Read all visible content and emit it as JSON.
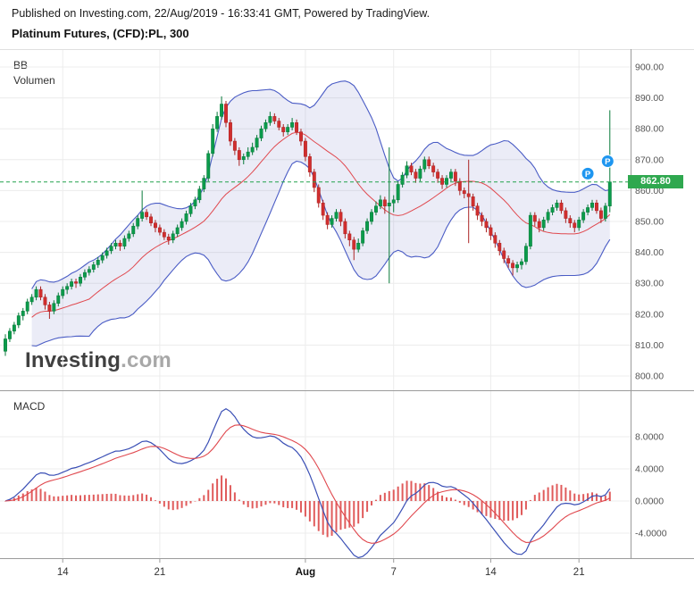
{
  "header": {
    "published_line": "Published on Investing.com, 22/Aug/2019 - 16:33:41 GMT, Powered by TradingView.",
    "instrument_title": "Platinum Futures, (CFD):PL, 300"
  },
  "watermark": {
    "brand": "Investing",
    "suffix": ".com"
  },
  "main_panel": {
    "indicator_labels": [
      "BB",
      "Volumen"
    ],
    "current_price_label": "862.80"
  },
  "macd_panel": {
    "label": "MACD"
  },
  "chart_data": {
    "type": "candlestick",
    "title": "Platinum Futures, (CFD):PL, 300",
    "interval_minutes": 300,
    "current_price": 862.8,
    "price_axis": {
      "min": 800,
      "max": 900,
      "tick_step": 10,
      "tick_labels": [
        "900.00",
        "890.00",
        "880.00",
        "870.00",
        "860.00",
        "850.00",
        "840.00",
        "830.00",
        "820.00",
        "810.00",
        "800.00"
      ]
    },
    "macd_axis": {
      "tick_labels": [
        "8.0000",
        "4.0000",
        "0.0000",
        "-4.0000"
      ],
      "tick_values": [
        8,
        4,
        0,
        -4
      ]
    },
    "x_axis_ticks": [
      {
        "label": "14",
        "bar": 13
      },
      {
        "label": "21",
        "bar": 35
      },
      {
        "label": "Aug",
        "bar": 68,
        "bold": true
      },
      {
        "label": "7",
        "bar": 88
      },
      {
        "label": "14",
        "bar": 110
      },
      {
        "label": "21",
        "bar": 130
      }
    ],
    "markers": [
      {
        "label": "P",
        "bar": 132,
        "price": 865.5
      },
      {
        "label": "P",
        "bar": 136.5,
        "price": 869.5
      }
    ],
    "indicators": {
      "bollinger": {
        "period": 20,
        "stddev": 2
      },
      "macd": {
        "fast": 12,
        "slow": 26,
        "signal": 9
      }
    },
    "colors": {
      "up": "#0b9b4b",
      "up_border": "#087a3a",
      "down": "#d12e2e",
      "down_border": "#aa2424",
      "bb_band": "#4a5cc5",
      "bb_fill": "rgba(98,110,190,0.13)",
      "bb_mid": "#e0484e",
      "macd_line": "#3a4fb5",
      "macd_signal": "#e0484e",
      "macd_hist": "#e05b5b",
      "price_line": "#22a24c",
      "price_label_bg": "#2fa84f",
      "marker": "#1e96f0",
      "grid": "#ececec",
      "axis_border": "#9b9b9b",
      "axis_text": "#555555"
    },
    "candles": [
      [
        808,
        813.5,
        806.5,
        812
      ],
      [
        812,
        815.5,
        811,
        814.5
      ],
      [
        814.5,
        817.5,
        813.5,
        816.5
      ],
      [
        816.5,
        820.5,
        815.5,
        819.5
      ],
      [
        819.5,
        822,
        818,
        821
      ],
      [
        821,
        825,
        820,
        824
      ],
      [
        824,
        826.5,
        823,
        825.5
      ],
      [
        825.5,
        829,
        824.5,
        828
      ],
      [
        828,
        829,
        824.5,
        825.5
      ],
      [
        825.5,
        826.5,
        821.5,
        823
      ],
      [
        823,
        824,
        818.5,
        821
      ],
      [
        821,
        824.5,
        820,
        823.5
      ],
      [
        823.5,
        827,
        822.5,
        826
      ],
      [
        826,
        829,
        825,
        828
      ],
      [
        828,
        830,
        826.5,
        829
      ],
      [
        829,
        831.5,
        828,
        830.5
      ],
      [
        830.5,
        831.5,
        828.5,
        830
      ],
      [
        830,
        833,
        829,
        832
      ],
      [
        832,
        834.5,
        831,
        833.5
      ],
      [
        833.5,
        835.5,
        832.5,
        834.5
      ],
      [
        834.5,
        837,
        833.5,
        836
      ],
      [
        836,
        838.5,
        835,
        837.5
      ],
      [
        837.5,
        840,
        836.5,
        839
      ],
      [
        839,
        841.5,
        838,
        840.5
      ],
      [
        840.5,
        843,
        839.5,
        842
      ],
      [
        842,
        844,
        841,
        843
      ],
      [
        843,
        844,
        840.5,
        842
      ],
      [
        842,
        845.5,
        841,
        844.5
      ],
      [
        844.5,
        847,
        843.5,
        846
      ],
      [
        846,
        849.5,
        845,
        848.5
      ],
      [
        848.5,
        852,
        847.5,
        851
      ],
      [
        851,
        860,
        850,
        853
      ],
      [
        853,
        854,
        850.5,
        851.5
      ],
      [
        851.5,
        852.5,
        848.5,
        849.5
      ],
      [
        849.5,
        850.5,
        846.5,
        848
      ],
      [
        848,
        849,
        845.5,
        846.5
      ],
      [
        846.5,
        847.5,
        844,
        845
      ],
      [
        845,
        846,
        842.5,
        844
      ],
      [
        844,
        847,
        843,
        846
      ],
      [
        846,
        849,
        845,
        848
      ],
      [
        848,
        851,
        847,
        850
      ],
      [
        850,
        853.5,
        849,
        852.5
      ],
      [
        852.5,
        856,
        851.5,
        855
      ],
      [
        855,
        858,
        854,
        857
      ],
      [
        857,
        861.5,
        856,
        860.5
      ],
      [
        860.5,
        865,
        859.5,
        864
      ],
      [
        864,
        873,
        863,
        872
      ],
      [
        872,
        881.5,
        871,
        880
      ],
      [
        880,
        885.5,
        879,
        884
      ],
      [
        884,
        890.5,
        883,
        888
      ],
      [
        888,
        889,
        880.5,
        882
      ],
      [
        882,
        883,
        874.5,
        876
      ],
      [
        876,
        877,
        871.5,
        873
      ],
      [
        873,
        874,
        868,
        870
      ],
      [
        870,
        872,
        868.5,
        871
      ],
      [
        871,
        874,
        870,
        872.5
      ],
      [
        872.5,
        875.5,
        871.5,
        874
      ],
      [
        874,
        878,
        873,
        877
      ],
      [
        877,
        881,
        876,
        880
      ],
      [
        880,
        883,
        879,
        882
      ],
      [
        882,
        885.5,
        881,
        884
      ],
      [
        884,
        885,
        881.5,
        882.5
      ],
      [
        882.5,
        883.5,
        879.5,
        880.5
      ],
      [
        880.5,
        881.5,
        877.5,
        879
      ],
      [
        879,
        881.5,
        878,
        880.5
      ],
      [
        880.5,
        883.5,
        879.5,
        882
      ],
      [
        882,
        883,
        878,
        879
      ],
      [
        879,
        880,
        874.5,
        876
      ],
      [
        876,
        877,
        869.5,
        871
      ],
      [
        871,
        872,
        864.5,
        866
      ],
      [
        866,
        867,
        859.5,
        861
      ],
      [
        861,
        862,
        854.5,
        856
      ],
      [
        856,
        857,
        850.5,
        852
      ],
      [
        852,
        853,
        847.5,
        849
      ],
      [
        849,
        852,
        848,
        851
      ],
      [
        851,
        854,
        850,
        853
      ],
      [
        853,
        854,
        848.5,
        850
      ],
      [
        850,
        851,
        844.5,
        846
      ],
      [
        846,
        847,
        842,
        844
      ],
      [
        844,
        845,
        837.5,
        841
      ],
      [
        841,
        844.5,
        840,
        843
      ],
      [
        843,
        848,
        842,
        847
      ],
      [
        847,
        851,
        846,
        850
      ],
      [
        850,
        854,
        849,
        853
      ],
      [
        853,
        856.5,
        852,
        855
      ],
      [
        855,
        858.5,
        854,
        857
      ],
      [
        857,
        858,
        852.5,
        855
      ],
      [
        855,
        874,
        830,
        856
      ],
      [
        856,
        858.5,
        853,
        857
      ],
      [
        857,
        863,
        856,
        862
      ],
      [
        862,
        866,
        861,
        865
      ],
      [
        865,
        869.5,
        864,
        868
      ],
      [
        868,
        869,
        865,
        866
      ],
      [
        866,
        867,
        862.5,
        864
      ],
      [
        864,
        868,
        863,
        867
      ],
      [
        867,
        871,
        866,
        870
      ],
      [
        870,
        871,
        867,
        868
      ],
      [
        868,
        869,
        864.5,
        866
      ],
      [
        866,
        867,
        862.5,
        864
      ],
      [
        864,
        865,
        860.5,
        862
      ],
      [
        862,
        865,
        861,
        864
      ],
      [
        864,
        867,
        863,
        866
      ],
      [
        866,
        867,
        861.5,
        863
      ],
      [
        863,
        864,
        858.5,
        860
      ],
      [
        860,
        861,
        857.5,
        859
      ],
      [
        859,
        870,
        843,
        858
      ],
      [
        858,
        859,
        853.5,
        855
      ],
      [
        855,
        856,
        850.5,
        852
      ],
      [
        852,
        853,
        848.5,
        850
      ],
      [
        850,
        851,
        846.5,
        848
      ],
      [
        848,
        849,
        844,
        845.5
      ],
      [
        845.5,
        846.5,
        841.5,
        843
      ],
      [
        843,
        844,
        839,
        840.5
      ],
      [
        840.5,
        841.5,
        836.5,
        838
      ],
      [
        838,
        839,
        835,
        836.5
      ],
      [
        836.5,
        837.5,
        832.5,
        835
      ],
      [
        835,
        837,
        833.5,
        836
      ],
      [
        836,
        838,
        834.5,
        837
      ],
      [
        837,
        843,
        836,
        842
      ],
      [
        842,
        853,
        841,
        852
      ],
      [
        852,
        853,
        848.5,
        850
      ],
      [
        850,
        851,
        846.5,
        848
      ],
      [
        848,
        851.5,
        847,
        850.5
      ],
      [
        850.5,
        854,
        849.5,
        853
      ],
      [
        853,
        855.5,
        852,
        854.5
      ],
      [
        854.5,
        857,
        853.5,
        856
      ],
      [
        856,
        857,
        852.5,
        853.5
      ],
      [
        853.5,
        854.5,
        849.5,
        851
      ],
      [
        851,
        852,
        848,
        849.5
      ],
      [
        849.5,
        850.5,
        846.5,
        848
      ],
      [
        848,
        851.5,
        847,
        850.5
      ],
      [
        850.5,
        854,
        849.5,
        853
      ],
      [
        853,
        855.5,
        852,
        854.5
      ],
      [
        854.5,
        857,
        853.5,
        856
      ],
      [
        856,
        857,
        852.5,
        853.5
      ],
      [
        853.5,
        854.5,
        849.5,
        851
      ],
      [
        851,
        856,
        850,
        855
      ],
      [
        855,
        886,
        853,
        862.8
      ]
    ]
  }
}
